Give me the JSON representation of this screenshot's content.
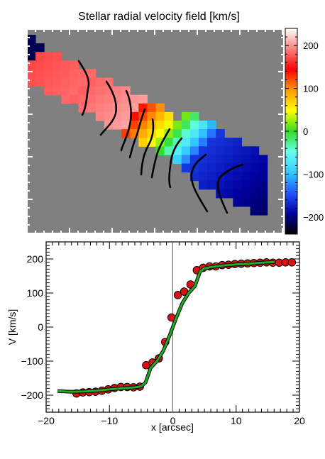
{
  "chart_data": [
    {
      "type": "heatmap",
      "title": "Stellar radial velocity field [km/s]",
      "colorbar": {
        "range": [
          -240,
          240
        ],
        "ticks": [
          200,
          100,
          0,
          -100,
          -200
        ],
        "tick_labels": [
          "200",
          "100",
          "0",
          "−100",
          "−200"
        ],
        "colors": [
          "#000000",
          "#0000a0",
          "#2255ff",
          "#33ccff",
          "#66ffee",
          "#33dd22",
          "#ffff00",
          "#ff9900",
          "#ff0000",
          "#ff8080",
          "#ffffff"
        ]
      },
      "background": "#808080",
      "grid": {
        "cols": 30,
        "rows": 22,
        "diagonal_offset": 2.6,
        "half_width": 2.6,
        "vmax": 215,
        "bands": [
          {
            "from": 0,
            "to": 6,
            "from_value": 170,
            "to_value": 185
          },
          {
            "from": 6,
            "to": 12,
            "from_value": 180,
            "to_value": 205
          },
          {
            "from": 12,
            "to": 15.5,
            "from_value": 140,
            "to_value": 40
          },
          {
            "from": 15.5,
            "to": 19.5,
            "from_value": 40,
            "to_value": -140
          },
          {
            "from": 19.5,
            "to": 30,
            "from_value": -160,
            "to_value": -215
          }
        ]
      }
    },
    {
      "type": "line",
      "xlabel": "x [arcsec]",
      "ylabel": "V [km/s]",
      "xlim": [
        -20,
        20
      ],
      "ylim": [
        -250,
        250
      ],
      "x_ticks": [
        -20,
        -10,
        0,
        10,
        20
      ],
      "x_tick_labels": [
        "−20",
        "−10",
        "0",
        "10",
        "20"
      ],
      "y_ticks": [
        -200,
        -100,
        0,
        100,
        200
      ],
      "y_tick_labels": [
        "−200",
        "−100",
        "0",
        "100",
        "200"
      ],
      "vertical_line_x": 0,
      "series": [
        {
          "kind": "points",
          "color": "#dd1111",
          "x": [
            -15.2,
            -14.2,
            -13.2,
            -12.2,
            -11.2,
            -10.2,
            -9.2,
            -8.2,
            -7.2,
            -6.2,
            -5.2,
            -4.2,
            -3.2,
            -2.2,
            -1.2,
            -0.2,
            0.8,
            1.8,
            2.8,
            3.8,
            4.8,
            5.8,
            6.8,
            7.8,
            8.8,
            9.8,
            10.8,
            11.8,
            12.8,
            13.8,
            14.8,
            15.8,
            16.8,
            17.8,
            18.8
          ],
          "y": [
            -195,
            -192,
            -191,
            -190,
            -187,
            -183,
            -179,
            -176,
            -176,
            -177,
            -175,
            -112,
            -104,
            -92,
            -44,
            28,
            94,
            104,
            125,
            167,
            174,
            178,
            178,
            182,
            183,
            185,
            186,
            187,
            188,
            189,
            190,
            189,
            189,
            190,
            190
          ]
        },
        {
          "kind": "line",
          "color": "#22aa22",
          "x": [
            -18.2,
            -16,
            -14,
            -12,
            -10,
            -8,
            -6,
            -5,
            -4.3,
            -3.5,
            -2.5,
            -1.5,
            -0.5,
            0,
            0.5,
            1.5,
            2.5,
            3.5,
            4.3,
            5,
            6,
            8,
            10,
            12,
            14,
            16
          ],
          "y": [
            -188,
            -190,
            -189,
            -187,
            -183,
            -180,
            -177,
            -174,
            -163,
            -120,
            -100,
            -70,
            -25,
            0,
            25,
            70,
            100,
            120,
            163,
            172,
            176,
            181,
            184,
            186,
            189,
            191
          ]
        }
      ]
    }
  ]
}
